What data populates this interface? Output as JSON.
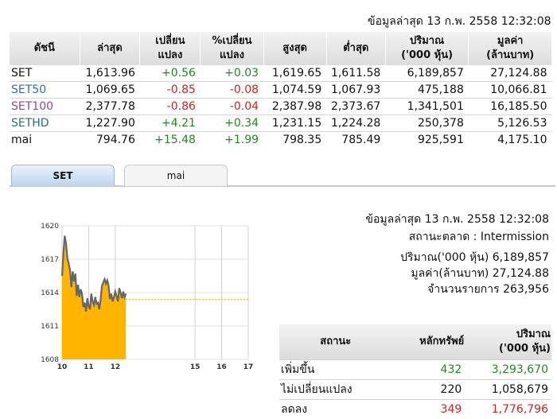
{
  "header": {
    "timestamp": "ข้อมูลล่าสุด 13 ก.พ. 2558 12:32:08"
  },
  "index_table": {
    "columns": [
      "ดัชนี",
      "ล่าสุด",
      "เปลี่ยน\nแปลง",
      "%เปลี่ยน\nแปลง",
      "สูงสุด",
      "ต่ำสุด",
      "ปริมาณ\n('000 หุ้น)",
      "มูลค่า\n(ล้านบาท)"
    ],
    "rows": [
      {
        "name": "SET",
        "last": "1,613.96",
        "chg": "+0.56",
        "pct": "+0.03",
        "high": "1,619.65",
        "low": "1,611.58",
        "vol": "6,189,857",
        "val": "27,124.88",
        "dir": "pos",
        "name_color": "#111111"
      },
      {
        "name": "SET50",
        "last": "1,069.65",
        "chg": "-0.85",
        "pct": "-0.08",
        "high": "1,074.59",
        "low": "1,067.93",
        "vol": "475,188",
        "val": "10,066.81",
        "dir": "neg",
        "name_color": "#2c6fb3"
      },
      {
        "name": "SET100",
        "last": "2,377.78",
        "chg": "-0.86",
        "pct": "-0.04",
        "high": "2,387.98",
        "low": "2,373.67",
        "vol": "1,341,501",
        "val": "16,185.50",
        "dir": "neg",
        "name_color": "#8a4c8a"
      },
      {
        "name": "SETHD",
        "last": "1,227.90",
        "chg": "+4.21",
        "pct": "+0.34",
        "high": "1,231.15",
        "low": "1,224.28",
        "vol": "250,378",
        "val": "5,126.53",
        "dir": "pos",
        "name_color": "#2a6d7a"
      },
      {
        "name": "mai",
        "last": "794.76",
        "chg": "+15.48",
        "pct": "+1.99",
        "high": "798.35",
        "low": "785.49",
        "vol": "925,591",
        "val": "4,175.10",
        "dir": "pos",
        "name_color": "#111111"
      }
    ]
  },
  "tabs": {
    "set": "SET",
    "mai": "mai"
  },
  "info": {
    "timestamp": "ข้อมูลล่าสุด 13 ก.พ. 2558 12:32:08",
    "status": "สถานะตลาด : Intermission",
    "volume": "ปริมาณ('000 หุ้น) 6,189,857",
    "value": "มูลค่า(ล้านบาท) 27,124.88",
    "deals": "จำนวนรายการ 263,956"
  },
  "status_table": {
    "headers": [
      "สถานะ",
      "หลักทรัพย์",
      "ปริมาณ\n('000 หุ้น)"
    ],
    "rows": [
      {
        "label": "เพิ่มขึ้น",
        "count": "432",
        "volume": "3,293,670",
        "color": "#1d8a1d"
      },
      {
        "label": "ไม่เปลี่ยนแปลง",
        "count": "220",
        "volume": "1,058,679",
        "color": "#111111"
      },
      {
        "label": "ลดลง",
        "count": "349",
        "volume": "1,776,796",
        "color": "#d42020"
      }
    ]
  },
  "chart_data": {
    "type": "area",
    "x_ticks": [
      "10",
      "11",
      "12",
      "15",
      "16",
      "17"
    ],
    "y_ticks": [
      "1620",
      "1617",
      "1614",
      "1611",
      "1608"
    ],
    "ylim": [
      1608,
      1620
    ],
    "xlim": [
      10,
      17
    ],
    "prev_close": 1613.4,
    "fill_color": "#ffb400",
    "line_color": "#666666",
    "x": [
      10.0,
      10.05,
      10.1,
      10.15,
      10.2,
      10.25,
      10.3,
      10.35,
      10.4,
      10.45,
      10.5,
      10.55,
      10.6,
      10.65,
      10.7,
      10.75,
      10.8,
      10.85,
      10.9,
      10.95,
      11.0,
      11.05,
      11.1,
      11.15,
      11.2,
      11.25,
      11.3,
      11.35,
      11.4,
      11.45,
      11.5,
      11.55,
      11.6,
      11.65,
      11.7,
      11.75,
      11.8,
      11.85,
      11.9,
      11.95,
      12.0,
      12.05,
      12.1,
      12.15,
      12.2,
      12.25,
      12.3,
      12.35,
      12.4
    ],
    "values": [
      1615.5,
      1617.5,
      1619.1,
      1618.4,
      1617.1,
      1616.6,
      1616.0,
      1614.5,
      1615.9,
      1615.0,
      1615.7,
      1613.7,
      1614.7,
      1613.6,
      1614.3,
      1613.9,
      1612.7,
      1613.1,
      1612.3,
      1613.5,
      1612.8,
      1612.5,
      1613.9,
      1613.2,
      1612.9,
      1613.6,
      1613.0,
      1613.1,
      1612.5,
      1613.4,
      1614.6,
      1614.9,
      1615.2,
      1614.8,
      1615.1,
      1614.6,
      1613.4,
      1613.9,
      1613.2,
      1613.6,
      1614.1,
      1613.7,
      1613.2,
      1614.4,
      1614.0,
      1613.5,
      1614.1,
      1613.6,
      1613.9
    ]
  }
}
